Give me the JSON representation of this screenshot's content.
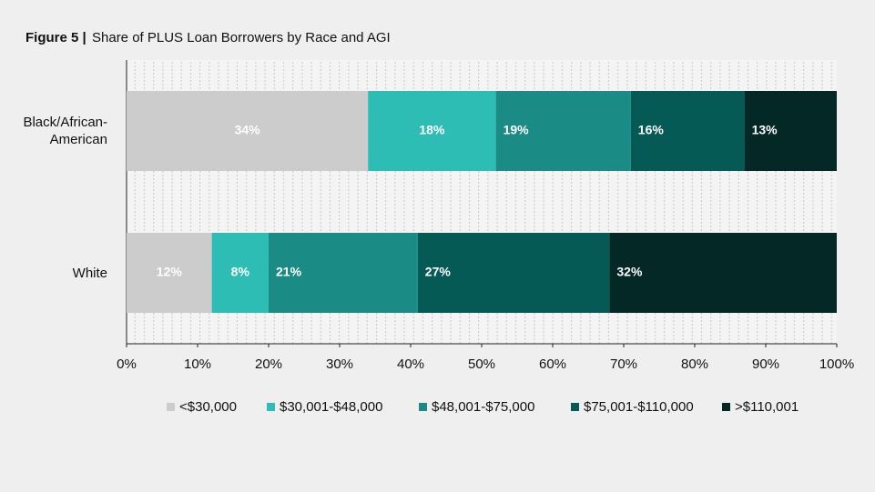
{
  "chart_data": {
    "type": "stacked_bar_horizontal",
    "figure_label": "Figure 5 |",
    "title": "Share of PLUS Loan Borrowers by Race and AGI",
    "categories": [
      "Black/African-American",
      "White"
    ],
    "series": [
      {
        "name": "<$30,000",
        "color": "#cccccc",
        "values": [
          34,
          12
        ],
        "value_labels": [
          "34%",
          "12%"
        ]
      },
      {
        "name": "$30,001-$48,000",
        "color": "#2ebdb5",
        "values": [
          18,
          8
        ],
        "value_labels": [
          "18%",
          "8%"
        ]
      },
      {
        "name": "$48,001-$75,000",
        "color": "#1b8c85",
        "values": [
          19,
          21
        ],
        "value_labels": [
          "19%",
          "21%"
        ]
      },
      {
        "name": "$75,001-$110,000",
        "color": "#065a56",
        "values": [
          16,
          27
        ],
        "value_labels": [
          "16%",
          "27%"
        ]
      },
      {
        "name": ">$110,001",
        "color": "#042826",
        "values": [
          13,
          32
        ],
        "value_labels": [
          "13%",
          "32%"
        ]
      }
    ],
    "xlim": [
      0,
      100
    ],
    "xticks": [
      {
        "value": 0,
        "label": "0%"
      },
      {
        "value": 10,
        "label": "10%"
      },
      {
        "value": 20,
        "label": "20%"
      },
      {
        "value": 30,
        "label": "30%"
      },
      {
        "value": 40,
        "label": "40%"
      },
      {
        "value": 50,
        "label": "50%"
      },
      {
        "value": 60,
        "label": "60%"
      },
      {
        "value": 70,
        "label": "70%"
      },
      {
        "value": 80,
        "label": "80%"
      },
      {
        "value": 90,
        "label": "90%"
      },
      {
        "value": 100,
        "label": "100%"
      }
    ],
    "legend": "bottom"
  }
}
